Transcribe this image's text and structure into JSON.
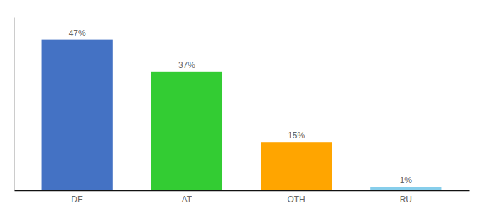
{
  "chart_data": {
    "type": "bar",
    "categories": [
      "DE",
      "AT",
      "OTH",
      "RU"
    ],
    "values": [
      47,
      37,
      15,
      1
    ],
    "value_labels": [
      "47%",
      "37%",
      "15%",
      "1%"
    ],
    "colors": [
      "#4472C4",
      "#33CC33",
      "#FFA500",
      "#87CEEB"
    ],
    "ylim": [
      0,
      54
    ],
    "data_labels": true,
    "tick_labels": "x"
  }
}
